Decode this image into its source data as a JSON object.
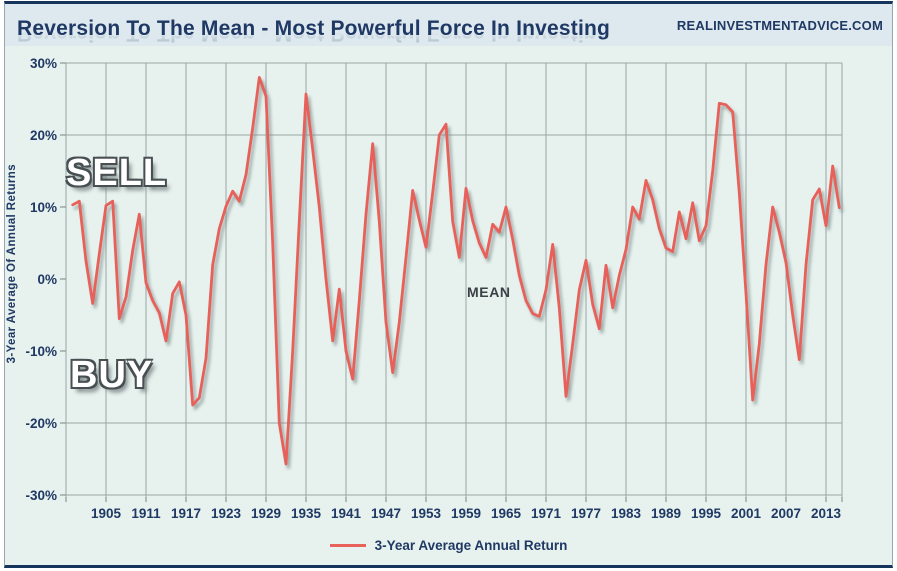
{
  "header": {
    "title": "Reversion To The Mean - Most Powerful Force In Investing",
    "site": "REALINVESTMENTADVICE.COM"
  },
  "annotations": {
    "sell": "SELL",
    "buy": "BUY",
    "mean": "MEAN"
  },
  "legend": {
    "label": "3-Year Average Annual Return"
  },
  "colors": {
    "line": "#e8615a",
    "sell_buy_line": "#4aa18e",
    "mean_line": "#3f4447",
    "grid": "#9aa5a5",
    "label_navy": "#1f3864",
    "titlebar_bg": "#dde9ee",
    "chart_bg": "#e7f2ee",
    "frame": "#16355c"
  },
  "chart_data": {
    "type": "line",
    "title": "Reversion To The Mean - Most Powerful Force In Investing",
    "ylabel": "3-Year Average Of Annual Returns",
    "xlabel": "",
    "grid": true,
    "legend_position": "bottom-center",
    "xlim": [
      1899,
      2015.4
    ],
    "ylim": [
      -30,
      30
    ],
    "x_ticks": [
      1905,
      1911,
      1917,
      1923,
      1929,
      1935,
      1941,
      1947,
      1953,
      1959,
      1965,
      1971,
      1977,
      1983,
      1989,
      1995,
      2001,
      2007,
      2013
    ],
    "y_ticks": [
      "30%",
      "20%",
      "10%",
      "0%",
      "-10%",
      "-20%",
      "-30%"
    ],
    "y_tick_values": [
      30,
      20,
      10,
      0,
      -10,
      -20,
      -30
    ],
    "reference_lines": [
      {
        "label": "SELL",
        "value": 10,
        "color": "#4aa18e",
        "style": "dashed"
      },
      {
        "label": "MEAN",
        "value": 0,
        "color": "#3f4447",
        "style": "dashed"
      },
      {
        "label": "BUY",
        "value": -10,
        "color": "#4aa18e",
        "style": "dashed"
      }
    ],
    "x": [
      1900,
      1901,
      1902,
      1903,
      1904,
      1905,
      1906,
      1907,
      1908,
      1909,
      1910,
      1911,
      1912,
      1913,
      1914,
      1915,
      1916,
      1917,
      1918,
      1919,
      1920,
      1921,
      1922,
      1923,
      1924,
      1925,
      1926,
      1927,
      1928,
      1929,
      1930,
      1931,
      1932,
      1933,
      1934,
      1935,
      1936,
      1937,
      1938,
      1939,
      1940,
      1941,
      1942,
      1943,
      1944,
      1945,
      1946,
      1947,
      1948,
      1949,
      1950,
      1951,
      1952,
      1953,
      1954,
      1955,
      1956,
      1957,
      1958,
      1959,
      1960,
      1961,
      1962,
      1963,
      1964,
      1965,
      1966,
      1967,
      1968,
      1969,
      1970,
      1971,
      1972,
      1973,
      1974,
      1975,
      1976,
      1977,
      1978,
      1979,
      1980,
      1981,
      1982,
      1983,
      1984,
      1985,
      1986,
      1987,
      1988,
      1989,
      1990,
      1991,
      1992,
      1993,
      1994,
      1995,
      1996,
      1997,
      1998,
      1999,
      2000,
      2001,
      2002,
      2003,
      2004,
      2005,
      2006,
      2007,
      2008,
      2009,
      2010,
      2011,
      2012,
      2013,
      2014,
      2015
    ],
    "series": [
      {
        "name": "3-Year Average Annual Return",
        "color": "#e8615a",
        "values": [
          10.3,
          10.8,
          2.5,
          -3.4,
          3.5,
          10.2,
          10.8,
          -5.5,
          -2.5,
          4.0,
          9.0,
          -0.5,
          -3.0,
          -4.7,
          -8.6,
          -2.0,
          -0.4,
          -5.0,
          -17.5,
          -16.5,
          -11.0,
          2.0,
          7.0,
          10.1,
          12.2,
          10.8,
          14.5,
          21.0,
          28.0,
          25.4,
          5.0,
          -20.0,
          -25.7,
          -10.0,
          8.0,
          25.7,
          18.0,
          10.0,
          0.0,
          -8.6,
          -1.4,
          -10.0,
          -13.9,
          -3.0,
          9.0,
          18.8,
          8.0,
          -6.0,
          -13.0,
          -6.0,
          3.0,
          12.3,
          8.2,
          4.4,
          12.0,
          20.0,
          21.5,
          8.0,
          3.0,
          12.6,
          8.1,
          5.0,
          3.0,
          7.6,
          6.5,
          10.0,
          5.5,
          0.5,
          -3.0,
          -4.8,
          -5.2,
          -1.5,
          4.8,
          -4.0,
          -16.3,
          -9.0,
          -1.5,
          2.6,
          -3.5,
          -6.9,
          1.9,
          -4.0,
          0.5,
          4.1,
          10.0,
          8.3,
          13.7,
          11.0,
          7.0,
          4.3,
          3.8,
          9.3,
          5.6,
          10.6,
          5.3,
          7.4,
          15.0,
          24.4,
          24.2,
          23.2,
          12.0,
          -2.0,
          -16.8,
          -9.0,
          2.0,
          10.0,
          6.5,
          2.3,
          -5.0,
          -11.2,
          2.0,
          11.0,
          12.5,
          7.4,
          15.7,
          9.9
        ]
      }
    ]
  }
}
